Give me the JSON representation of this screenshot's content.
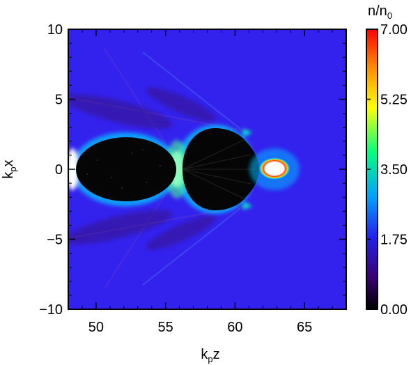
{
  "chart_data": {
    "type": "heatmap",
    "xlabel": {
      "base": "k",
      "sub": "p",
      "tail": "z"
    },
    "ylabel": {
      "base": "k",
      "sub": "p",
      "tail": "x"
    },
    "xlim": [
      48,
      68
    ],
    "ylim": [
      -10,
      10
    ],
    "x_ticks": [
      "50",
      "55",
      "60",
      "65"
    ],
    "y_ticks": [
      "10",
      "5",
      "0",
      "−5",
      "−10"
    ],
    "x_tick_values": [
      50,
      55,
      60,
      65
    ],
    "y_tick_values": [
      10,
      5,
      0,
      -5,
      -10
    ],
    "colorbar": {
      "title": {
        "base": "n/n",
        "sub": "0"
      },
      "ticks": [
        "7.00",
        "5.25",
        "3.50",
        "1.75",
        "0.00"
      ],
      "tick_values": [
        7.0,
        5.25,
        3.5,
        1.75,
        0.0
      ],
      "range": [
        0,
        7.0
      ],
      "colors": [
        "#000000",
        "#3a0078",
        "#2222f0",
        "#00a0ff",
        "#00ff80",
        "#ffff00",
        "#ff9000",
        "#ff0000"
      ]
    },
    "background_density": 1.0,
    "features": [
      {
        "name": "first-bubble",
        "z_range": [
          48.6,
          55.9
        ],
        "x_range": [
          -2.3,
          2.3
        ],
        "density": 0.0
      },
      {
        "name": "second-bubble",
        "z_range": [
          56.0,
          61.5
        ],
        "x_range": [
          -2.8,
          2.8
        ],
        "density": 0.0
      },
      {
        "name": "driver-bunch",
        "z_center": 62.6,
        "x_center": 0.0,
        "peak_density": 7.0
      }
    ],
    "colors": {
      "background": "#3322ee",
      "bubble": "#050505",
      "sheath": "#00c8ff"
    }
  }
}
